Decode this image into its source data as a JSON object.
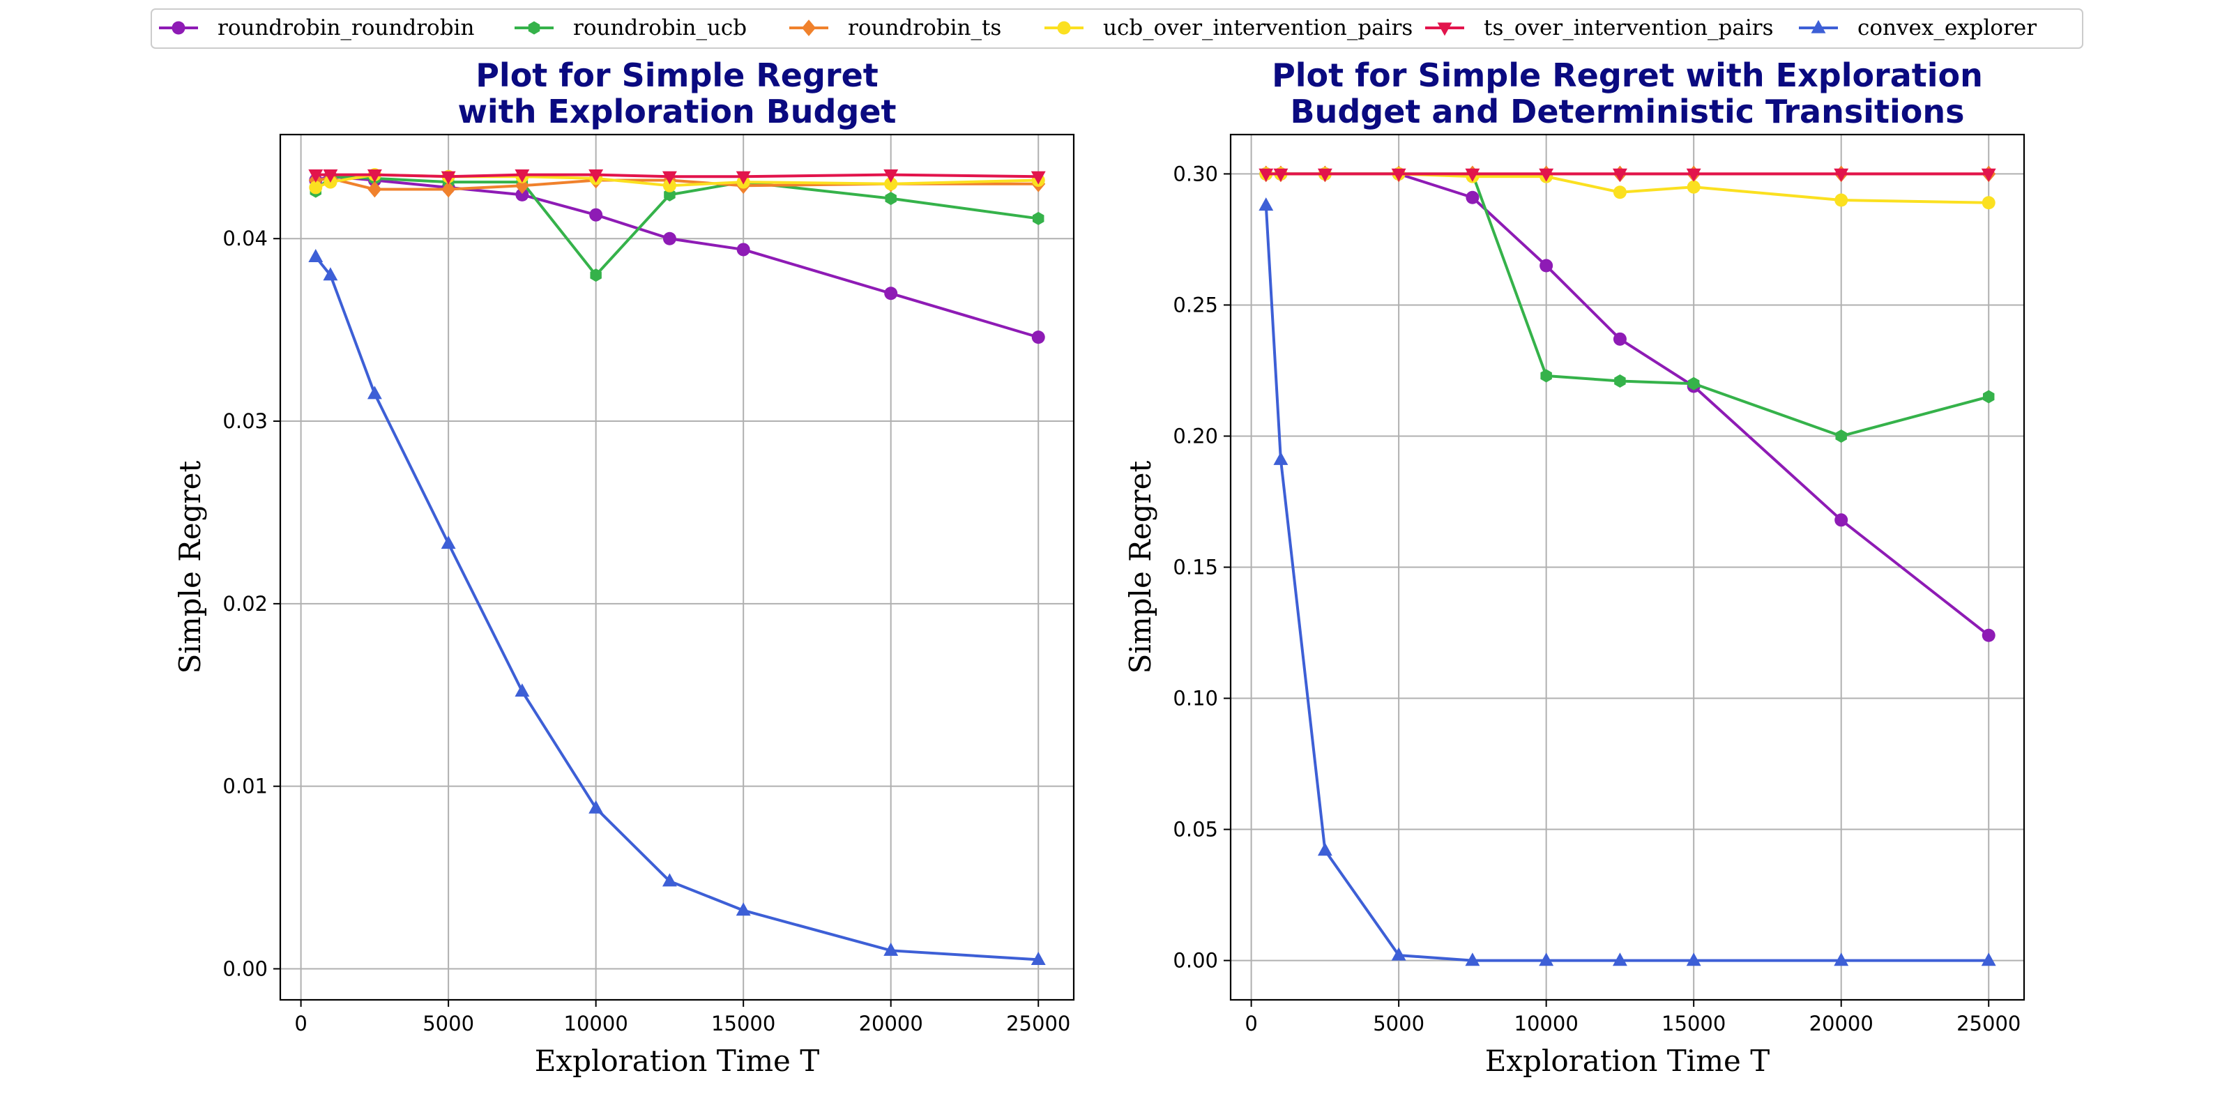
{
  "legend": {
    "location": "top-center",
    "entries": [
      {
        "name": "roundrobin_roundrobin",
        "color": "#8e1bb5",
        "marker": "circle"
      },
      {
        "name": "roundrobin_ucb",
        "color": "#35b24a",
        "marker": "hexagon"
      },
      {
        "name": "roundrobin_ts",
        "color": "#f0812c",
        "marker": "diamond"
      },
      {
        "name": "ucb_over_intervention_pairs",
        "color": "#fbe020",
        "marker": "circle"
      },
      {
        "name": "ts_over_intervention_pairs",
        "color": "#e2144c",
        "marker": "triangle-down"
      },
      {
        "name": "convex_explorer",
        "color": "#3d5fd6",
        "marker": "triangle-up"
      }
    ]
  },
  "chart_data": [
    {
      "type": "line",
      "title": [
        "Plot for Simple Regret",
        "with Exploration Budget"
      ],
      "title_color": "#0a0a80",
      "xlabel": "Exploration Time T",
      "ylabel": "Simple Regret",
      "xlim": [
        -700,
        26200
      ],
      "ylim": [
        -0.0017,
        0.0457
      ],
      "xticks": [
        0,
        5000,
        10000,
        15000,
        20000,
        25000
      ],
      "xtick_labels": [
        "0",
        "5000",
        "10000",
        "15000",
        "20000",
        "25000"
      ],
      "yticks": [
        0.0,
        0.01,
        0.02,
        0.03,
        0.04
      ],
      "ytick_labels": [
        "0.00",
        "0.01",
        "0.02",
        "0.03",
        "0.04"
      ],
      "grid": true,
      "series": [
        {
          "name": "roundrobin_roundrobin",
          "x": [
            500,
            1000,
            2500,
            5000,
            7500,
            10000,
            12500,
            15000,
            20000,
            25000
          ],
          "y": [
            0.0432,
            0.0434,
            0.0432,
            0.0428,
            0.0424,
            0.0413,
            0.04,
            0.0394,
            0.037,
            0.0346
          ]
        },
        {
          "name": "roundrobin_ucb",
          "x": [
            500,
            1000,
            2500,
            5000,
            7500,
            10000,
            12500,
            15000,
            20000,
            25000
          ],
          "y": [
            0.0426,
            0.0434,
            0.0433,
            0.0431,
            0.0431,
            0.038,
            0.0424,
            0.0431,
            0.0422,
            0.0411
          ]
        },
        {
          "name": "roundrobin_ts",
          "x": [
            500,
            1000,
            2500,
            5000,
            7500,
            10000,
            12500,
            15000,
            20000,
            25000
          ],
          "y": [
            0.0432,
            0.0433,
            0.0427,
            0.0427,
            0.0429,
            0.0432,
            0.0432,
            0.0429,
            0.043,
            0.043
          ]
        },
        {
          "name": "ucb_over_intervention_pairs",
          "x": [
            500,
            1000,
            2500,
            5000,
            7500,
            10000,
            12500,
            15000,
            20000,
            25000
          ],
          "y": [
            0.0428,
            0.0431,
            0.0435,
            0.0434,
            0.0434,
            0.0433,
            0.0429,
            0.0431,
            0.043,
            0.0432
          ]
        },
        {
          "name": "ts_over_intervention_pairs",
          "x": [
            500,
            1000,
            2500,
            5000,
            7500,
            10000,
            12500,
            15000,
            20000,
            25000
          ],
          "y": [
            0.0435,
            0.0435,
            0.0435,
            0.0434,
            0.0435,
            0.0435,
            0.0434,
            0.0434,
            0.0435,
            0.0434
          ]
        },
        {
          "name": "convex_explorer",
          "x": [
            500,
            1000,
            2500,
            5000,
            7500,
            10000,
            12500,
            15000,
            20000,
            25000
          ],
          "y": [
            0.039,
            0.038,
            0.0315,
            0.0233,
            0.0152,
            0.0088,
            0.0048,
            0.0032,
            0.001,
            0.0005
          ]
        }
      ]
    },
    {
      "type": "line",
      "title": [
        "Plot for Simple Regret with Exploration",
        "Budget and Deterministic Transitions"
      ],
      "title_color": "#0a0a80",
      "xlabel": "Exploration Time T",
      "ylabel": "Simple Regret",
      "xlim": [
        -700,
        26200
      ],
      "ylim": [
        -0.015,
        0.315
      ],
      "xticks": [
        0,
        5000,
        10000,
        15000,
        20000,
        25000
      ],
      "xtick_labels": [
        "0",
        "5000",
        "10000",
        "15000",
        "20000",
        "25000"
      ],
      "yticks": [
        0.0,
        0.05,
        0.1,
        0.15,
        0.2,
        0.25,
        0.3
      ],
      "ytick_labels": [
        "0.00",
        "0.05",
        "0.10",
        "0.15",
        "0.20",
        "0.25",
        "0.30"
      ],
      "grid": true,
      "series": [
        {
          "name": "roundrobin_roundrobin",
          "x": [
            500,
            1000,
            2500,
            5000,
            7500,
            10000,
            12500,
            15000,
            20000,
            25000
          ],
          "y": [
            0.3,
            0.3,
            0.3,
            0.3,
            0.291,
            0.265,
            0.237,
            0.219,
            0.168,
            0.124
          ]
        },
        {
          "name": "roundrobin_ucb",
          "x": [
            500,
            1000,
            2500,
            5000,
            7500,
            10000,
            12500,
            15000,
            20000,
            25000
          ],
          "y": [
            0.3,
            0.3,
            0.3,
            0.3,
            0.3,
            0.223,
            0.221,
            0.22,
            0.2,
            0.215
          ]
        },
        {
          "name": "roundrobin_ts",
          "x": [
            500,
            1000,
            2500,
            5000,
            7500,
            10000,
            12500,
            15000,
            20000,
            25000
          ],
          "y": [
            0.3,
            0.3,
            0.3,
            0.3,
            0.3,
            0.3,
            0.3,
            0.3,
            0.3,
            0.3
          ]
        },
        {
          "name": "ucb_over_intervention_pairs",
          "x": [
            500,
            1000,
            2500,
            5000,
            7500,
            10000,
            12500,
            15000,
            20000,
            25000
          ],
          "y": [
            0.3,
            0.3,
            0.3,
            0.3,
            0.299,
            0.299,
            0.293,
            0.295,
            0.29,
            0.289
          ]
        },
        {
          "name": "ts_over_intervention_pairs",
          "x": [
            500,
            1000,
            2500,
            5000,
            7500,
            10000,
            12500,
            15000,
            20000,
            25000
          ],
          "y": [
            0.3,
            0.3,
            0.3,
            0.3,
            0.3,
            0.3,
            0.3,
            0.3,
            0.3,
            0.3
          ]
        },
        {
          "name": "convex_explorer",
          "x": [
            500,
            1000,
            2500,
            5000,
            7500,
            10000,
            12500,
            15000,
            20000,
            25000
          ],
          "y": [
            0.288,
            0.191,
            0.042,
            0.002,
            0.0,
            0.0,
            0.0,
            0.0,
            0.0,
            0.0
          ]
        }
      ]
    }
  ]
}
